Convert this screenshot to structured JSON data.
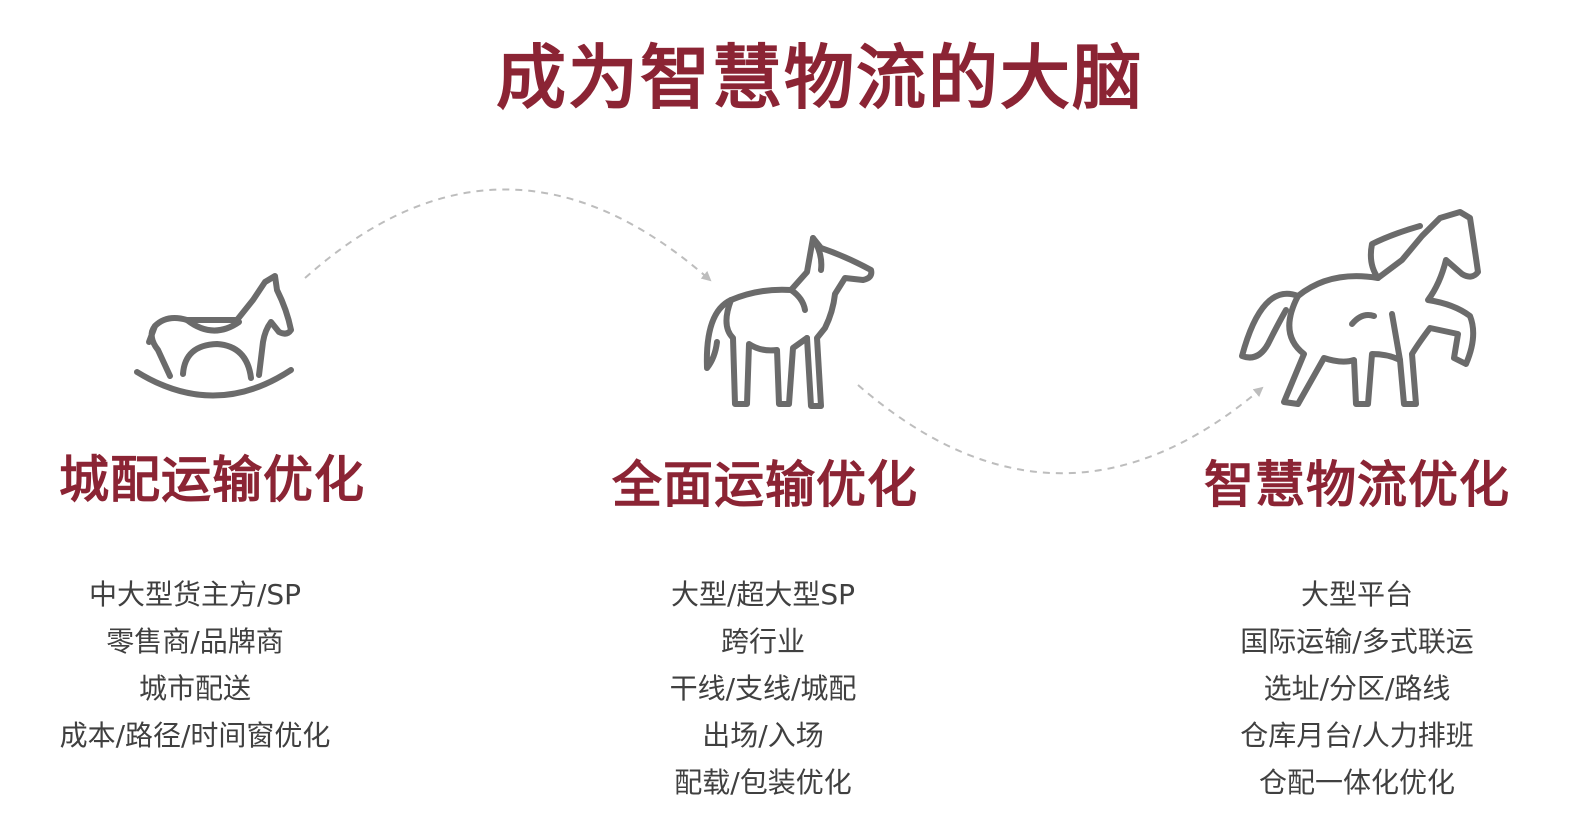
{
  "title": "成为智慧物流的大脑",
  "colors": {
    "accent": "#8b2434",
    "text": "#404040",
    "icon": "#6b6b6b",
    "arrow": "#bdbdbd"
  },
  "stages": [
    {
      "icon": "rocking-horse-icon",
      "title": "城配运输优化",
      "items": [
        "中大型货主方/SP",
        "零售商/品牌商",
        "城市配送",
        "成本/路径/时间窗优化"
      ]
    },
    {
      "icon": "horse-icon",
      "title": "全面运输优化",
      "items": [
        "大型/超大型SP",
        "跨行业",
        "干线/支线/城配",
        "出场/入场",
        "配载/包装优化"
      ]
    },
    {
      "icon": "rearing-horse-icon",
      "title": "智慧物流优化",
      "items": [
        "大型平台",
        "国际运输/多式联运",
        "选址/分区/路线",
        "仓库月台/人力排班",
        "仓配一体化优化"
      ]
    }
  ]
}
